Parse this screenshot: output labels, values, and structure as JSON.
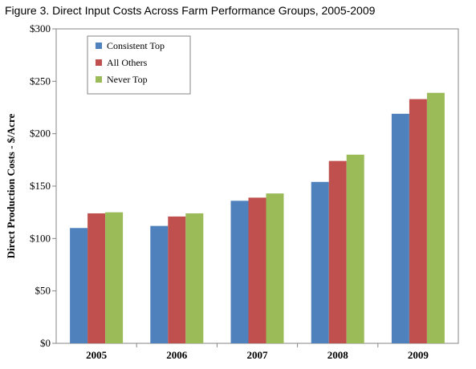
{
  "figure": {
    "title": "Figure 3. Direct Input Costs Across Farm Performance Groups, 2005-2009"
  },
  "chart_data": {
    "type": "bar",
    "categories": [
      "2005",
      "2006",
      "2007",
      "2008",
      "2009"
    ],
    "series": [
      {
        "name": "Consistent Top",
        "color": "#4f81bd",
        "values": [
          110,
          112,
          136,
          154,
          219
        ]
      },
      {
        "name": "All Others",
        "color": "#c0504d",
        "values": [
          124,
          121,
          139,
          174,
          233
        ]
      },
      {
        "name": "Never Top",
        "color": "#9bbb59",
        "values": [
          125,
          124,
          143,
          180,
          239
        ]
      }
    ],
    "title": "",
    "xlabel": "",
    "ylabel": "Direct Production Costs - $/Acre",
    "ylim": [
      0,
      300
    ],
    "yticks": [
      0,
      50,
      100,
      150,
      200,
      250,
      300
    ],
    "ytick_labels": [
      "$0",
      "$50",
      "$100",
      "$150",
      "$200",
      "$250",
      "$300"
    ],
    "grid": false,
    "legend_position": "top-left"
  }
}
